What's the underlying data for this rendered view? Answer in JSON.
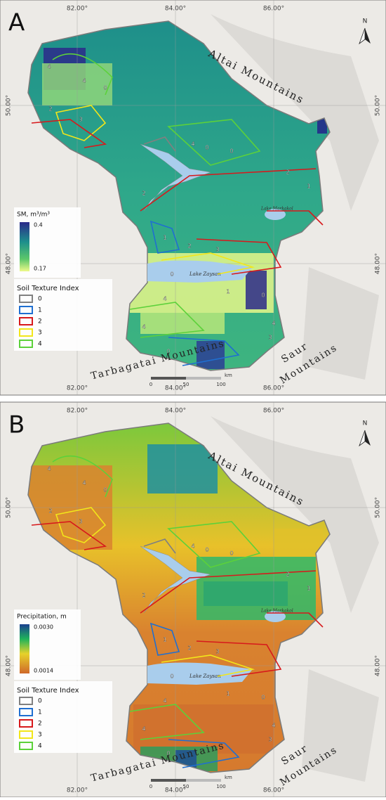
{
  "panels": [
    {
      "letter": "A",
      "lon_labels": [
        "82.00°",
        "84.00°",
        "86.00°"
      ],
      "lat_labels": [
        "50.00°",
        "48.00°"
      ],
      "mountains": {
        "altai": "Altai Mountains",
        "tarbagatai": "Tarbagatai Mountains",
        "saur": [
          "Saur",
          "Mountains"
        ]
      },
      "lakes": {
        "zaysan": "Lake Zaysan",
        "markakol": "Lake Markakol"
      },
      "legend": {
        "title": "SM, m³/m³",
        "max": "0.4",
        "min": "0.17"
      },
      "soil_legend": {
        "title": "Soil Texture Index",
        "items": [
          {
            "label": "0",
            "color": "#808080"
          },
          {
            "label": "1",
            "color": "#1f6fd1"
          },
          {
            "label": "2",
            "color": "#d7191c"
          },
          {
            "label": "3",
            "color": "#f2e61a"
          },
          {
            "label": "4",
            "color": "#5cd13a"
          }
        ]
      },
      "scale": {
        "ticks": [
          "0",
          "50",
          "100"
        ],
        "unit": "km"
      },
      "north": "N",
      "region_labels": [
        "4",
        "4",
        "0",
        "2",
        "3",
        "2",
        "0",
        "4",
        "0",
        "2",
        "1",
        "2",
        "1",
        "4",
        "3",
        "0",
        "4",
        "1",
        "0",
        "4",
        "3",
        "0"
      ]
    },
    {
      "letter": "B",
      "lon_labels": [
        "82.00°",
        "84.00°",
        "86.00°"
      ],
      "lat_labels": [
        "50.00°",
        "48.00°"
      ],
      "mountains": {
        "altai": "Altai Mountains",
        "tarbagatai": "Tarbagatai Mountains",
        "saur": [
          "Saur",
          "Mountains"
        ]
      },
      "lakes": {
        "zaysan": "Lake Zaysan",
        "markakol": "Lake Markakol"
      },
      "legend": {
        "title": "Precipitation, m",
        "max": "0.0030",
        "min": "0.0014"
      },
      "soil_legend": {
        "title": "Soil Texture Index",
        "items": [
          {
            "label": "0",
            "color": "#808080"
          },
          {
            "label": "1",
            "color": "#1f6fd1"
          },
          {
            "label": "2",
            "color": "#d7191c"
          },
          {
            "label": "3",
            "color": "#f2e61a"
          },
          {
            "label": "4",
            "color": "#5cd13a"
          }
        ]
      },
      "scale": {
        "ticks": [
          "0",
          "50",
          "100"
        ],
        "unit": "km"
      },
      "north": "N",
      "region_labels": [
        "4",
        "4",
        "0",
        "2",
        "3",
        "2",
        "0",
        "4",
        "0",
        "2",
        "1",
        "2",
        "1",
        "4",
        "3",
        "0",
        "4",
        "1",
        "0",
        "4",
        "3",
        "0"
      ]
    }
  ]
}
